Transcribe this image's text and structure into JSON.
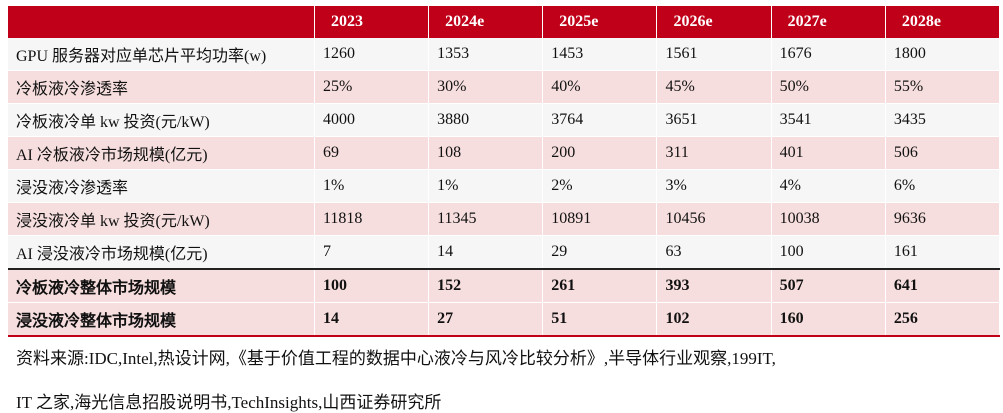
{
  "table": {
    "header": [
      "",
      "2023",
      "2024e",
      "2025e",
      "2026e",
      "2027e",
      "2028e"
    ],
    "rows": [
      {
        "label": "GPU 服务器对应单芯片平均功率(w)",
        "values": [
          "1260",
          "1353",
          "1453",
          "1561",
          "1676",
          "1800"
        ]
      },
      {
        "label": "冷板液冷渗透率",
        "values": [
          "25%",
          "30%",
          "40%",
          "45%",
          "50%",
          "55%"
        ]
      },
      {
        "label": "冷板液冷单 kw 投资(元/kW)",
        "values": [
          "4000",
          "3880",
          "3764",
          "3651",
          "3541",
          "3435"
        ]
      },
      {
        "label": "AI 冷板液冷市场规模(亿元)",
        "values": [
          "69",
          "108",
          "200",
          "311",
          "401",
          "506"
        ]
      },
      {
        "label": "浸没液冷渗透率",
        "values": [
          "1%",
          "1%",
          "2%",
          "3%",
          "4%",
          "6%"
        ]
      },
      {
        "label": "浸没液冷单 kw 投资(元/kW)",
        "values": [
          "11818",
          "11345",
          "10891",
          "10456",
          "10038",
          "9636"
        ]
      },
      {
        "label": "AI 浸没液冷市场规模(亿元)",
        "values": [
          "7",
          "14",
          "29",
          "63",
          "100",
          "161"
        ]
      }
    ],
    "totals": [
      {
        "label": "冷板液冷整体市场规模",
        "values": [
          "100",
          "152",
          "261",
          "393",
          "507",
          "641"
        ]
      },
      {
        "label": "浸没液冷整体市场规模",
        "values": [
          "14",
          "27",
          "51",
          "102",
          "160",
          "256"
        ]
      }
    ]
  },
  "source": {
    "line1": "资料来源:IDC,Intel,热设计网,《基于价值工程的数据中心液冷与风冷比较分析》,半导体行业观察,199IT,",
    "line2": "IT 之家,海光信息招股说明书,TechInsights,山西证券研究所"
  }
}
